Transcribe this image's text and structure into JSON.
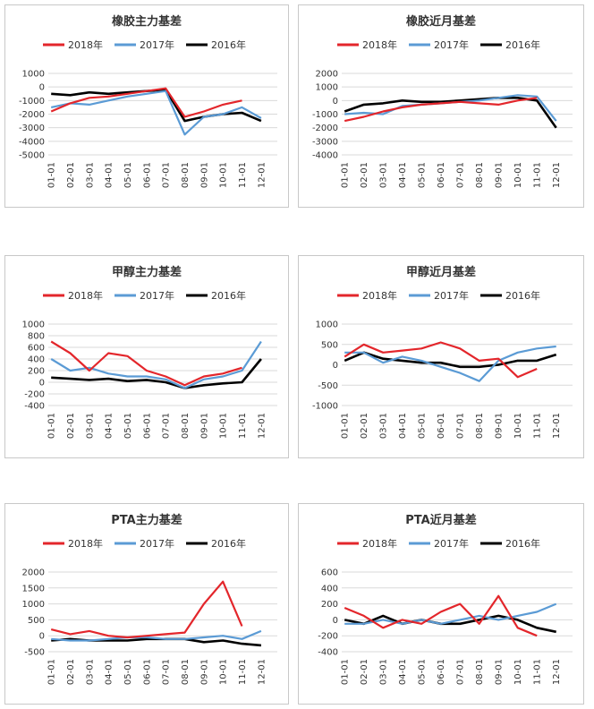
{
  "colors": {
    "2018": "#e3262b",
    "2017": "#5b9bd5",
    "2016": "#000000"
  },
  "watermark": "",
  "chart_data": [
    {
      "type": "line",
      "title": "橡胶主力基差",
      "categories": [
        "01-01",
        "02-01",
        "03-01",
        "04-01",
        "05-01",
        "06-01",
        "07-01",
        "08-01",
        "09-01",
        "10-01",
        "11-01",
        "12-01"
      ],
      "ylim": [
        -5000,
        1000
      ],
      "yticks": [
        1000,
        0,
        -1000,
        -2000,
        -3000,
        -4000,
        -5000
      ],
      "series": [
        {
          "name": "2018年",
          "values": [
            -1800,
            -1200,
            -800,
            -700,
            -500,
            -300,
            -100,
            -2200,
            -1800,
            -1300,
            -1000,
            null
          ]
        },
        {
          "name": "2017年",
          "values": [
            -1500,
            -1200,
            -1300,
            -1000,
            -700,
            -500,
            -300,
            -3500,
            -2200,
            -2000,
            -1500,
            -2300
          ]
        },
        {
          "name": "2016年",
          "values": [
            -500,
            -600,
            -400,
            -500,
            -400,
            -300,
            -200,
            -2500,
            -2200,
            -2000,
            -1900,
            -2500
          ]
        }
      ]
    },
    {
      "type": "line",
      "title": "橡胶近月基差",
      "categories": [
        "01-01",
        "02-01",
        "03-01",
        "04-01",
        "05-01",
        "06-01",
        "07-01",
        "08-01",
        "09-01",
        "10-01",
        "11-01",
        "12-01"
      ],
      "ylim": [
        -4000,
        2000
      ],
      "yticks": [
        2000,
        1000,
        0,
        -1000,
        -2000,
        -3000,
        -4000
      ],
      "series": [
        {
          "name": "2018年",
          "values": [
            -1500,
            -1200,
            -800,
            -500,
            -300,
            -200,
            -100,
            -200,
            -300,
            0,
            200,
            null
          ]
        },
        {
          "name": "2017年",
          "values": [
            -1000,
            -900,
            -1000,
            -400,
            -300,
            -200,
            -100,
            0,
            200,
            400,
            300,
            -1500
          ]
        },
        {
          "name": "2016年",
          "values": [
            -800,
            -300,
            -200,
            0,
            -100,
            -100,
            0,
            100,
            200,
            200,
            0,
            -2000
          ]
        }
      ]
    },
    {
      "type": "line",
      "title": "甲醇主力基差",
      "categories": [
        "01-01",
        "02-01",
        "03-01",
        "04-01",
        "05-01",
        "06-01",
        "07-01",
        "08-01",
        "09-01",
        "10-01",
        "11-01",
        "12-01"
      ],
      "ylim": [
        -400,
        1000
      ],
      "yticks": [
        1000,
        800,
        600,
        400,
        200,
        0,
        -200,
        -400
      ],
      "series": [
        {
          "name": "2018年",
          "values": [
            700,
            500,
            200,
            500,
            450,
            200,
            100,
            -50,
            100,
            150,
            250,
            null
          ]
        },
        {
          "name": "2017年",
          "values": [
            400,
            200,
            250,
            150,
            100,
            100,
            50,
            -100,
            50,
            100,
            200,
            700
          ]
        },
        {
          "name": "2016年",
          "values": [
            80,
            60,
            40,
            60,
            20,
            40,
            0,
            -100,
            -50,
            -20,
            0,
            400
          ]
        }
      ]
    },
    {
      "type": "line",
      "title": "甲醇近月基差",
      "categories": [
        "01-01",
        "02-01",
        "03-01",
        "04-01",
        "05-01",
        "06-01",
        "07-01",
        "08-01",
        "09-01",
        "10-01",
        "11-01",
        "12-01"
      ],
      "ylim": [
        -1000,
        1000
      ],
      "yticks": [
        1000,
        500,
        0,
        -500,
        -1000
      ],
      "series": [
        {
          "name": "2018年",
          "values": [
            200,
            500,
            300,
            350,
            400,
            550,
            400,
            100,
            150,
            -300,
            -100,
            null
          ]
        },
        {
          "name": "2017年",
          "values": [
            300,
            300,
            50,
            200,
            100,
            -50,
            -200,
            -400,
            100,
            300,
            400,
            450
          ]
        },
        {
          "name": "2016年",
          "values": [
            100,
            300,
            150,
            100,
            50,
            50,
            -50,
            -50,
            0,
            100,
            100,
            250
          ]
        }
      ]
    },
    {
      "type": "line",
      "title": "PTA主力基差",
      "categories": [
        "01-01",
        "02-01",
        "03-01",
        "04-01",
        "05-01",
        "06-01",
        "07-01",
        "08-01",
        "09-01",
        "10-01",
        "11-01",
        "12-01"
      ],
      "ylim": [
        -500,
        2000
      ],
      "yticks": [
        2000,
        1500,
        1000,
        500,
        0,
        -500
      ],
      "series": [
        {
          "name": "2018年",
          "values": [
            200,
            50,
            150,
            0,
            -50,
            0,
            50,
            100,
            1000,
            1700,
            300,
            null
          ]
        },
        {
          "name": "2017年",
          "values": [
            -100,
            -150,
            -150,
            -100,
            -50,
            -50,
            -100,
            -100,
            -50,
            0,
            -100,
            150
          ]
        },
        {
          "name": "2016年",
          "values": [
            -150,
            -100,
            -150,
            -150,
            -150,
            -100,
            -100,
            -100,
            -200,
            -150,
            -250,
            -300
          ]
        }
      ]
    },
    {
      "type": "line",
      "title": "PTA近月基差",
      "categories": [
        "01-01",
        "02-01",
        "03-01",
        "04-01",
        "05-01",
        "06-01",
        "07-01",
        "08-01",
        "09-01",
        "10-01",
        "11-01",
        "12-01"
      ],
      "ylim": [
        -400,
        600
      ],
      "yticks": [
        600,
        400,
        200,
        0,
        -200,
        -400
      ],
      "series": [
        {
          "name": "2018年",
          "values": [
            150,
            50,
            -100,
            0,
            -50,
            100,
            200,
            -50,
            300,
            -100,
            -200,
            null
          ]
        },
        {
          "name": "2017年",
          "values": [
            -50,
            -50,
            0,
            -50,
            0,
            -50,
            0,
            50,
            0,
            50,
            100,
            200
          ]
        },
        {
          "name": "2016年",
          "values": [
            0,
            -50,
            50,
            -50,
            0,
            -50,
            -50,
            0,
            50,
            0,
            -100,
            -150
          ]
        }
      ]
    }
  ]
}
